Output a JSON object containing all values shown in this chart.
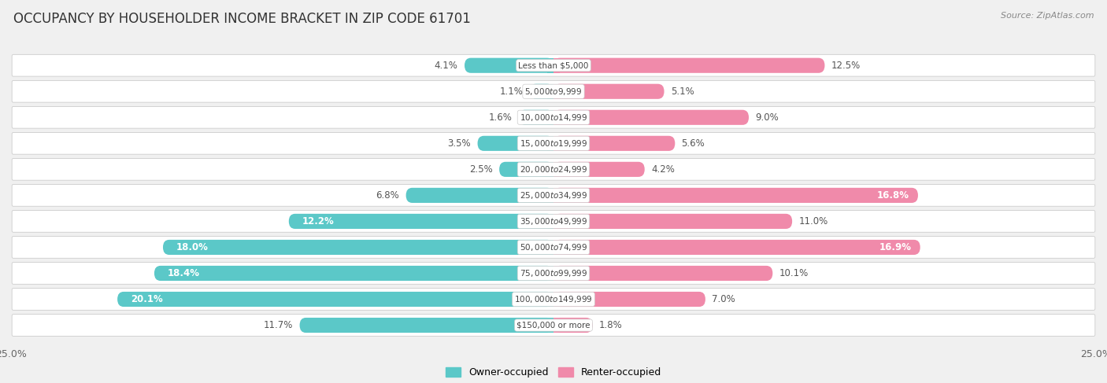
{
  "title": "OCCUPANCY BY HOUSEHOLDER INCOME BRACKET IN ZIP CODE 61701",
  "source": "Source: ZipAtlas.com",
  "categories": [
    "Less than $5,000",
    "$5,000 to $9,999",
    "$10,000 to $14,999",
    "$15,000 to $19,999",
    "$20,000 to $24,999",
    "$25,000 to $34,999",
    "$35,000 to $49,999",
    "$50,000 to $74,999",
    "$75,000 to $99,999",
    "$100,000 to $149,999",
    "$150,000 or more"
  ],
  "owner_values": [
    4.1,
    1.1,
    1.6,
    3.5,
    2.5,
    6.8,
    12.2,
    18.0,
    18.4,
    20.1,
    11.7
  ],
  "renter_values": [
    12.5,
    5.1,
    9.0,
    5.6,
    4.2,
    16.8,
    11.0,
    16.9,
    10.1,
    7.0,
    1.8
  ],
  "owner_color": "#5bc8c8",
  "renter_color": "#f08aaa",
  "background_color": "#f0f0f0",
  "row_bg_color": "#ffffff",
  "row_border_color": "#cccccc",
  "xlim": 25.0,
  "title_fontsize": 12,
  "label_fontsize": 8.5,
  "category_fontsize": 7.5,
  "legend_fontsize": 9,
  "source_fontsize": 8,
  "owner_inside_threshold": 12.0,
  "renter_inside_threshold": 14.0
}
